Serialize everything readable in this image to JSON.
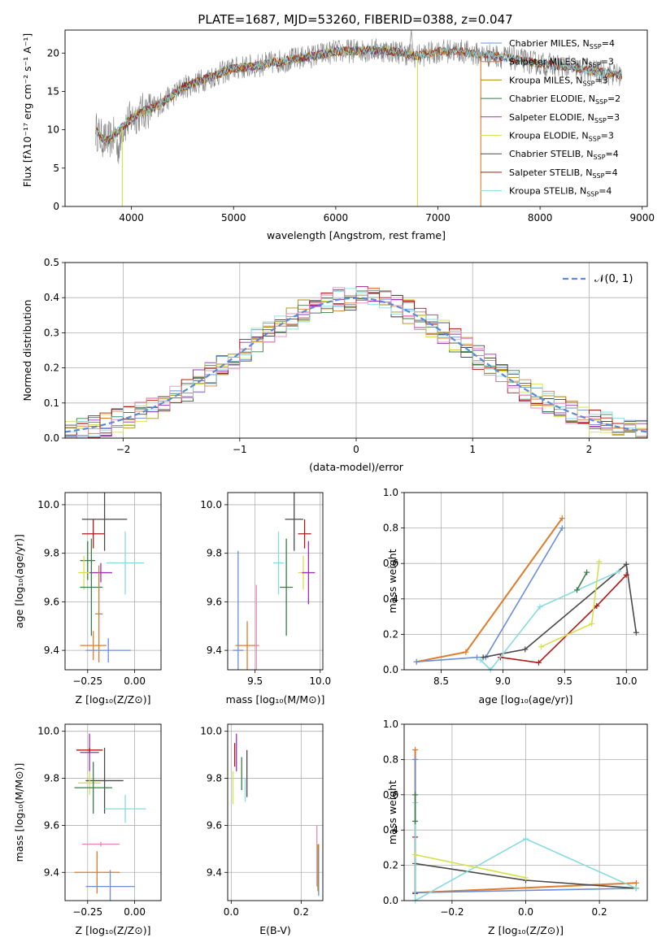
{
  "figure": {
    "title": "PLATE=1687, MJD=53260, FIBERID=0388, z=0.047",
    "colors": {
      "chabrier_miles": "#6a8fd8",
      "salpeter_miles": "#e07b2a",
      "kroupa_miles": "#b08a10",
      "chabrier_elodie": "#3a7d4a",
      "salpeter_elodie": "#9b30b8",
      "kroupa_elodie": "#d4e04c",
      "chabrier_stelib": "#4a4a4a",
      "salpeter_stelib": "#b01818",
      "kroupa_stelib": "#86dbe0",
      "pink_extra": "#e88ab8",
      "gauss": "#5b8bd6",
      "grey_spec": "#808080"
    }
  },
  "chart_data": [
    {
      "id": "spectrum",
      "type": "line",
      "xlabel": "wavelength [Angstrom, rest frame]",
      "ylabel": "Flux [fλ10⁻¹⁷ erg cm⁻² s⁻¹ A⁻¹]",
      "xlim": [
        3350,
        9050
      ],
      "ylim": [
        0,
        23
      ],
      "xticks": [
        "4000",
        "5000",
        "6000",
        "7000",
        "8000",
        "9000"
      ],
      "yticks": [
        "0",
        "5",
        "10",
        "15",
        "20"
      ],
      "legend": [
        {
          "name": "Chabrier MILES, N_SSP=4",
          "text": "Chabrier MILES, N",
          "sub": "SSP",
          "tail": "=4",
          "color": "chabrier_miles"
        },
        {
          "name": "Salpeter MILES, N_SSP=3",
          "text": "Salpeter MILES, N",
          "sub": "SSP",
          "tail": "=3",
          "color": "salpeter_miles"
        },
        {
          "name": "Kroupa MILES, N_SSP=3",
          "text": "Kroupa MILES, N",
          "sub": "SSP",
          "tail": "=3",
          "color": "kroupa_miles"
        },
        {
          "name": "Chabrier ELODIE, N_SSP=2",
          "text": "Chabrier ELODIE, N",
          "sub": "SSP",
          "tail": "=2",
          "color": "chabrier_elodie"
        },
        {
          "name": "Salpeter ELODIE, N_SSP=3",
          "text": "Salpeter ELODIE, N",
          "sub": "SSP",
          "tail": "=3",
          "color": "salpeter_elodie"
        },
        {
          "name": "Kroupa ELODIE, N_SSP=3",
          "text": "Kroupa ELODIE, N",
          "sub": "SSP",
          "tail": "=3",
          "color": "kroupa_elodie"
        },
        {
          "name": "Chabrier STELIB, N_SSP=4",
          "text": "Chabrier STELIB, N",
          "sub": "SSP",
          "tail": "=4",
          "color": "chabrier_stelib"
        },
        {
          "name": "Salpeter STELIB, N_SSP=4",
          "text": "Salpeter STELIB, N",
          "sub": "SSP",
          "tail": "=4",
          "color": "salpeter_stelib"
        },
        {
          "name": "Kroupa STELIB, N_SSP=4",
          "text": "Kroupa STELIB, N",
          "sub": "SSP",
          "tail": "=4",
          "color": "kroupa_stelib"
        }
      ],
      "legend_placement": "top-right",
      "continuum": {
        "x": [
          3650,
          3700,
          3750,
          3800,
          3900,
          4000,
          4100,
          4200,
          4300,
          4400,
          4500,
          4600,
          4800,
          5000,
          5200,
          5400,
          5600,
          5800,
          6000,
          6200,
          6400,
          6600,
          6800,
          7000,
          7200,
          7400,
          7600,
          7800,
          8000,
          8200,
          8400,
          8600,
          8800
        ],
        "y": [
          10,
          9,
          8.5,
          8.8,
          10.2,
          11.5,
          12.3,
          12.8,
          13.5,
          14.5,
          15.5,
          16,
          17,
          18,
          18.3,
          18.8,
          19.2,
          19.7,
          20.2,
          20.3,
          20.4,
          20.2,
          19.6,
          20.2,
          20.3,
          19.8,
          19.6,
          19.1,
          18.6,
          18.3,
          17.9,
          17.5,
          17.1
        ]
      },
      "dropouts": [
        {
          "series": "kroupa_elodie",
          "x": 3910
        },
        {
          "series": "kroupa_elodie",
          "x": 6800
        },
        {
          "series": "salpeter_miles",
          "x": 7420
        }
      ],
      "noisy_series": "grey_spec",
      "noisy_spike": {
        "x": 6740,
        "y": 23
      }
    },
    {
      "id": "residuals",
      "type": "bar",
      "xlabel": "(data-model)/error",
      "ylabel": "Normed distribution",
      "xlim": [
        -2.5,
        2.5
      ],
      "ylim": [
        0,
        0.5
      ],
      "xticks": [
        "−2",
        "−1",
        "0",
        "1",
        "2"
      ],
      "yticks": [
        "0.0",
        "0.1",
        "0.2",
        "0.3",
        "0.4",
        "0.5"
      ],
      "grid": true,
      "bin_width": 0.1,
      "legend_label": "𝒩(0, 1)",
      "legend_placement": "top-right",
      "series_colors": [
        "chabrier_miles",
        "salpeter_miles",
        "kroupa_miles",
        "chabrier_elodie",
        "salpeter_elodie",
        "kroupa_elodie",
        "chabrier_stelib",
        "salpeter_stelib",
        "kroupa_stelib",
        "pink_extra"
      ]
    },
    {
      "id": "age_vs_z",
      "type": "scatter",
      "xlabel": "Z [log₁₀(Z/Z⊙)]",
      "ylabel": "age  [log₁₀(age/yr)]",
      "xlim": [
        -0.37,
        0.14
      ],
      "ylim": [
        9.32,
        10.05
      ],
      "xticks": [
        {
          "v": -0.25,
          "t": "−0.25"
        },
        {
          "v": 0.0,
          "t": "0.00"
        }
      ],
      "yticks": [
        {
          "v": 9.4,
          "t": "9.4"
        },
        {
          "v": 9.6,
          "t": "9.6"
        },
        {
          "v": 9.8,
          "t": "9.8"
        },
        {
          "v": 10.0,
          "t": "10.0"
        }
      ],
      "points": [
        {
          "color": "chabrier_stelib",
          "x": -0.16,
          "y": 9.94,
          "xe": 0.12,
          "ye": 0.13
        },
        {
          "color": "salpeter_stelib",
          "x": -0.22,
          "y": 9.88,
          "xe": 0.06,
          "ye": 0.06
        },
        {
          "color": "chabrier_elodie",
          "x": -0.25,
          "y": 9.77,
          "xe": 0.04,
          "ye": 0.08
        },
        {
          "color": "kroupa_stelib",
          "x": -0.05,
          "y": 9.76,
          "xe": 0.1,
          "ye": 0.13
        },
        {
          "color": "kroupa_elodie",
          "x": -0.27,
          "y": 9.72,
          "xe": 0.03,
          "ye": 0.07
        },
        {
          "color": "salpeter_elodie",
          "x": -0.18,
          "y": 9.72,
          "xe": 0.06,
          "ye": 0.04
        },
        {
          "color": "chabrier_elodie",
          "x": -0.23,
          "y": 9.66,
          "xe": 0.06,
          "ye": 0.2
        },
        {
          "color": "salpeter_miles",
          "x": -0.22,
          "y": 9.42,
          "xe": 0.07,
          "ye": 0.06
        },
        {
          "color": "chabrier_miles",
          "x": -0.14,
          "y": 9.4,
          "xe": 0.12,
          "ye": 0.05
        },
        {
          "color": "salpeter_miles",
          "x": -0.19,
          "y": 9.55,
          "xe": 0.02,
          "ye": 0.2
        }
      ]
    },
    {
      "id": "age_vs_mass",
      "type": "scatter",
      "xlabel": "mass [log₁₀(M/M⊙)]",
      "ylabel": "",
      "xlim": [
        9.29,
        10.02
      ],
      "ylim": [
        9.32,
        10.05
      ],
      "xticks": [
        {
          "v": 9.5,
          "t": "9.5"
        },
        {
          "v": 10.0,
          "t": "10.0"
        }
      ],
      "yticks": [
        {
          "v": 9.4,
          "t": "9.4"
        },
        {
          "v": 9.6,
          "t": "9.6"
        },
        {
          "v": 9.8,
          "t": "9.8"
        },
        {
          "v": 10.0,
          "t": "10.0"
        }
      ],
      "points": [
        {
          "color": "chabrier_stelib",
          "x": 9.8,
          "y": 9.94,
          "xe": 0.07,
          "ye": 0.13
        },
        {
          "color": "salpeter_stelib",
          "x": 9.88,
          "y": 9.88,
          "xe": 0.05,
          "ye": 0.06
        },
        {
          "color": "kroupa_stelib",
          "x": 9.68,
          "y": 9.76,
          "xe": 0.04,
          "ye": 0.13
        },
        {
          "color": "kroupa_elodie",
          "x": 9.87,
          "y": 9.72,
          "xe": 0.04,
          "ye": 0.07
        },
        {
          "color": "salpeter_elodie",
          "x": 9.91,
          "y": 9.72,
          "xe": 0.05,
          "ye": 0.13
        },
        {
          "color": "chabrier_elodie",
          "x": 9.74,
          "y": 9.66,
          "xe": 0.05,
          "ye": 0.2
        },
        {
          "color": "salpeter_miles",
          "x": 9.44,
          "y": 9.42,
          "xe": 0.09,
          "ye": 0.1
        },
        {
          "color": "chabrier_miles",
          "x": 9.37,
          "y": 9.4,
          "xe": 0.04,
          "ye": 0.41
        },
        {
          "color": "pink_extra",
          "x": 9.51,
          "y": 9.42,
          "xe": 0.01,
          "ye": 0.25
        }
      ]
    },
    {
      "id": "weight_vs_age",
      "type": "line",
      "xlabel": "age  [log₁₀(age/yr)]",
      "ylabel": "mass weight",
      "xlim": [
        8.2,
        10.17
      ],
      "ylim": [
        0,
        1
      ],
      "xticks": [
        {
          "v": 8.5,
          "t": "8.5"
        },
        {
          "v": 9.0,
          "t": "9.0"
        },
        {
          "v": 9.5,
          "t": "9.5"
        },
        {
          "v": 10.0,
          "t": "10.0"
        }
      ],
      "yticks": [
        {
          "v": 0,
          "t": "0.0"
        },
        {
          "v": 0.2,
          "t": "0.2"
        },
        {
          "v": 0.4,
          "t": "0.4"
        },
        {
          "v": 0.6,
          "t": "0.6"
        },
        {
          "v": 0.8,
          "t": "0.8"
        },
        {
          "v": 1.0,
          "t": "1.0"
        }
      ],
      "grid": true,
      "series": [
        {
          "color": "salpeter_miles",
          "x": [
            8.3,
            8.7,
            9.48
          ],
          "y": [
            0.045,
            0.1,
            0.855
          ],
          "w": 2
        },
        {
          "color": "chabrier_miles",
          "x": [
            8.3,
            8.79,
            8.86,
            9.48
          ],
          "y": [
            0.045,
            0.07,
            0.07,
            0.8
          ],
          "w": 1.6
        },
        {
          "color": "chabrier_stelib",
          "x": [
            8.84,
            9.18,
            10.0,
            10.08
          ],
          "y": [
            0.07,
            0.115,
            0.595,
            0.21
          ],
          "w": 1.6
        },
        {
          "color": "salpeter_stelib",
          "x": [
            8.98,
            9.29,
            9.76,
            10.0
          ],
          "y": [
            0.07,
            0.04,
            0.36,
            0.535
          ],
          "w": 1.6
        },
        {
          "color": "kroupa_stelib",
          "x": [
            8.82,
            8.9,
            9.3,
            9.94
          ],
          "y": [
            0.055,
            0.0,
            0.355,
            0.555
          ],
          "w": 1.6
        },
        {
          "color": "kroupa_elodie",
          "x": [
            9.31,
            9.72,
            9.78
          ],
          "y": [
            0.13,
            0.26,
            0.61
          ],
          "w": 1.6
        },
        {
          "color": "chabrier_elodie",
          "x": [
            9.6,
            9.68
          ],
          "y": [
            0.45,
            0.55
          ],
          "w": 1.6
        }
      ]
    },
    {
      "id": "mass_vs_z",
      "type": "scatter",
      "xlabel": "Z [log₁₀(Z/Z⊙)]",
      "ylabel": "mass [log₁₀(M/M⊙)]",
      "xlim": [
        -0.37,
        0.14
      ],
      "ylim": [
        9.28,
        10.03
      ],
      "xticks": [
        {
          "v": -0.25,
          "t": "−0.25"
        },
        {
          "v": 0.0,
          "t": "0.00"
        }
      ],
      "yticks": [
        {
          "v": 9.4,
          "t": "9.4"
        },
        {
          "v": 9.6,
          "t": "9.6"
        },
        {
          "v": 9.8,
          "t": "9.8"
        },
        {
          "v": 10.0,
          "t": "10.0"
        }
      ],
      "points": [
        {
          "color": "salpeter_elodie",
          "x": -0.24,
          "y": 9.91,
          "xe": 0.05,
          "ye": 0.08
        },
        {
          "color": "salpeter_stelib",
          "x": -0.24,
          "y": 9.92,
          "xe": 0.07,
          "ye": 0.01
        },
        {
          "color": "chabrier_stelib",
          "x": -0.16,
          "y": 9.79,
          "xe": 0.1,
          "ye": 0.14
        },
        {
          "color": "kroupa_elodie",
          "x": -0.24,
          "y": 9.78,
          "xe": 0.06,
          "ye": 0.05
        },
        {
          "color": "chabrier_elodie",
          "x": -0.22,
          "y": 9.76,
          "xe": 0.1,
          "ye": 0.11
        },
        {
          "color": "kroupa_stelib",
          "x": -0.05,
          "y": 9.67,
          "xe": 0.11,
          "ye": 0.06
        },
        {
          "color": "pink_extra",
          "x": -0.18,
          "y": 9.52,
          "xe": 0.1,
          "ye": 0.01
        },
        {
          "color": "salpeter_miles",
          "x": -0.2,
          "y": 9.4,
          "xe": 0.12,
          "ye": 0.09
        },
        {
          "color": "chabrier_miles",
          "x": -0.13,
          "y": 9.34,
          "xe": 0.13,
          "ye": 0.07
        }
      ]
    },
    {
      "id": "mass_vs_ebv",
      "type": "scatter",
      "xlabel": "E(B-V)",
      "ylabel": "",
      "xlim": [
        -0.01,
        0.262
      ],
      "ylim": [
        9.28,
        10.03
      ],
      "xticks": [
        {
          "v": 0.0,
          "t": "0.0"
        },
        {
          "v": 0.2,
          "t": "0.2"
        }
      ],
      "yticks": [
        {
          "v": 9.4,
          "t": "9.4"
        },
        {
          "v": 9.6,
          "t": "9.6"
        },
        {
          "v": 9.8,
          "t": "9.8"
        },
        {
          "v": 10.0,
          "t": "10.0"
        }
      ],
      "points": [
        {
          "color": "salpeter_elodie",
          "x": 0.015,
          "y": 9.91,
          "xe": 0,
          "ye": 0.08
        },
        {
          "color": "salpeter_stelib",
          "x": 0.01,
          "y": 9.9,
          "xe": 0,
          "ye": 0.05
        },
        {
          "color": "chabrier_stelib",
          "x": 0.045,
          "y": 9.82,
          "xe": 0,
          "ye": 0.1
        },
        {
          "color": "kroupa_elodie",
          "x": 0.005,
          "y": 9.76,
          "xe": 0,
          "ye": 0.07
        },
        {
          "color": "chabrier_elodie",
          "x": 0.03,
          "y": 9.82,
          "xe": 0,
          "ye": 0.07
        },
        {
          "color": "kroupa_stelib",
          "x": 0.04,
          "y": 9.75,
          "xe": 0,
          "ye": 0.05
        },
        {
          "color": "pink_extra",
          "x": 0.245,
          "y": 9.47,
          "xe": 0,
          "ye": 0.13
        },
        {
          "color": "salpeter_miles",
          "x": 0.25,
          "y": 9.42,
          "xe": 0,
          "ye": 0.1
        },
        {
          "color": "chabrier_miles",
          "x": 0.25,
          "y": 9.4,
          "xe": 0,
          "ye": 0.1
        },
        {
          "color": "kroupa_miles",
          "x": 0.248,
          "y": 9.42,
          "xe": 0,
          "ye": 0.1
        }
      ]
    },
    {
      "id": "weight_vs_z",
      "type": "line",
      "xlabel": "Z [log₁₀(Z/Z⊙)]",
      "ylabel": "mass weight",
      "xlim": [
        -0.33,
        0.33
      ],
      "ylim": [
        0,
        1
      ],
      "xticks": [
        {
          "v": -0.2,
          "t": "−0.2"
        },
        {
          "v": 0.0,
          "t": "0.0"
        },
        {
          "v": 0.2,
          "t": "0.2"
        }
      ],
      "yticks": [
        {
          "v": 0,
          "t": "0.0"
        },
        {
          "v": 0.2,
          "t": "0.2"
        },
        {
          "v": 0.4,
          "t": "0.4"
        },
        {
          "v": 0.6,
          "t": "0.6"
        },
        {
          "v": 0.8,
          "t": "0.8"
        },
        {
          "v": 1.0,
          "t": "1.0"
        }
      ],
      "grid": true,
      "series": [
        {
          "color": "salpeter_miles",
          "x": [
            -0.3,
            -0.3,
            0.3
          ],
          "y": [
            0.855,
            0.045,
            0.1
          ],
          "w": 2
        },
        {
          "color": "chabrier_miles",
          "x": [
            -0.3,
            -0.3,
            0.3
          ],
          "y": [
            0.8,
            0.045,
            0.07
          ],
          "w": 1.6
        },
        {
          "color": "chabrier_stelib",
          "x": [
            -0.3,
            0.0,
            0.3
          ],
          "y": [
            0.21,
            0.115,
            0.07
          ],
          "w": 1.6
        },
        {
          "color": "salpeter_stelib",
          "x": [
            -0.3,
            -0.3
          ],
          "y": [
            0.36,
            0.04
          ],
          "w": 1.4
        },
        {
          "color": "kroupa_stelib",
          "x": [
            -0.3,
            -0.3,
            0.0,
            0.3
          ],
          "y": [
            0.555,
            0.0,
            0.35,
            0.07
          ],
          "w": 1.6
        },
        {
          "color": "kroupa_elodie",
          "x": [
            -0.3,
            0.0
          ],
          "y": [
            0.26,
            0.13
          ],
          "w": 1.6
        },
        {
          "color": "chabrier_elodie",
          "x": [
            -0.3,
            -0.3
          ],
          "y": [
            0.6,
            0.45
          ],
          "w": 1.4
        }
      ]
    }
  ]
}
